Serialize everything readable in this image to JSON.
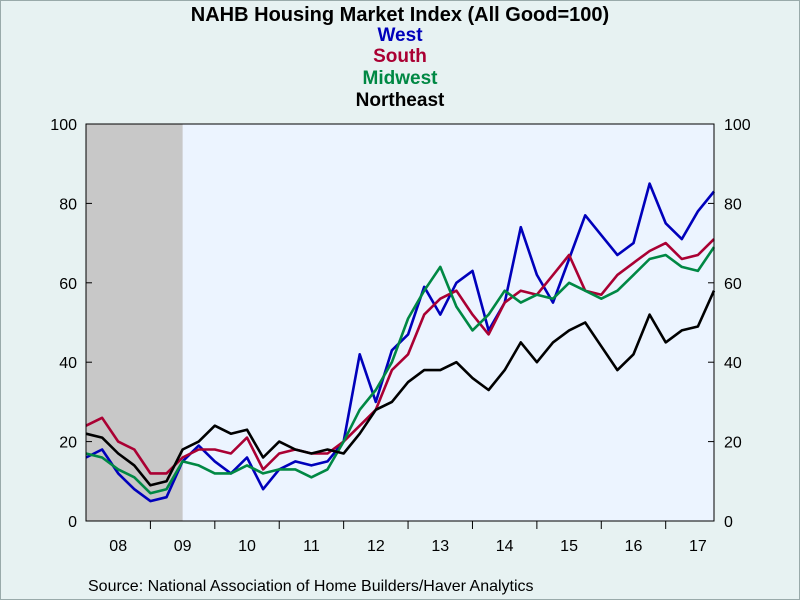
{
  "chart_data": {
    "type": "line",
    "title": "NAHB Housing Market Index (All Good=100)",
    "ylim": [
      0,
      100
    ],
    "yticks": [
      0,
      20,
      40,
      60,
      80,
      100
    ],
    "x_tick_labels": [
      "08",
      "09",
      "10",
      "11",
      "12",
      "13",
      "14",
      "15",
      "16",
      "17"
    ],
    "x_range": [
      2008.0,
      2017.75
    ],
    "recession_shading": [
      2008.0,
      2009.5
    ],
    "grid": false,
    "legend": "top-center",
    "series": [
      {
        "name": "West",
        "color": "#0000bb",
        "x": [
          2008.0,
          2008.25,
          2008.5,
          2008.75,
          2009.0,
          2009.25,
          2009.5,
          2009.75,
          2010.0,
          2010.25,
          2010.5,
          2010.75,
          2011.0,
          2011.25,
          2011.5,
          2011.75,
          2012.0,
          2012.25,
          2012.5,
          2012.75,
          2013.0,
          2013.25,
          2013.5,
          2013.75,
          2014.0,
          2014.25,
          2014.5,
          2014.75,
          2015.0,
          2015.25,
          2015.5,
          2015.75,
          2016.0,
          2016.25,
          2016.5,
          2016.75,
          2017.0,
          2017.25,
          2017.5,
          2017.75
        ],
        "values": [
          16,
          18,
          12,
          8,
          5,
          6,
          15,
          19,
          15,
          12,
          16,
          8,
          13,
          15,
          14,
          15,
          20,
          42,
          30,
          43,
          47,
          59,
          52,
          60,
          63,
          48,
          55,
          74,
          62,
          55,
          66,
          77,
          72,
          67,
          70,
          85,
          75,
          71,
          78,
          83
        ]
      },
      {
        "name": "South",
        "color": "#aa0033",
        "x": [
          2008.0,
          2008.25,
          2008.5,
          2008.75,
          2009.0,
          2009.25,
          2009.5,
          2009.75,
          2010.0,
          2010.25,
          2010.5,
          2010.75,
          2011.0,
          2011.25,
          2011.5,
          2011.75,
          2012.0,
          2012.25,
          2012.5,
          2012.75,
          2013.0,
          2013.25,
          2013.5,
          2013.75,
          2014.0,
          2014.25,
          2014.5,
          2014.75,
          2015.0,
          2015.25,
          2015.5,
          2015.75,
          2016.0,
          2016.25,
          2016.5,
          2016.75,
          2017.0,
          2017.25,
          2017.5,
          2017.75
        ],
        "values": [
          24,
          26,
          20,
          18,
          12,
          12,
          16,
          18,
          18,
          17,
          21,
          13,
          17,
          18,
          17,
          17,
          20,
          24,
          28,
          38,
          42,
          52,
          56,
          58,
          52,
          47,
          55,
          58,
          57,
          62,
          67,
          58,
          57,
          62,
          65,
          68,
          70,
          66,
          67,
          71
        ]
      },
      {
        "name": "Midwest",
        "color": "#008844",
        "x": [
          2008.0,
          2008.25,
          2008.5,
          2008.75,
          2009.0,
          2009.25,
          2009.5,
          2009.75,
          2010.0,
          2010.25,
          2010.5,
          2010.75,
          2011.0,
          2011.25,
          2011.5,
          2011.75,
          2012.0,
          2012.25,
          2012.5,
          2012.75,
          2013.0,
          2013.25,
          2013.5,
          2013.75,
          2014.0,
          2014.25,
          2014.5,
          2014.75,
          2015.0,
          2015.25,
          2015.5,
          2015.75,
          2016.0,
          2016.25,
          2016.5,
          2016.75,
          2017.0,
          2017.25,
          2017.5,
          2017.75
        ],
        "values": [
          17,
          16,
          13,
          11,
          7,
          8,
          15,
          14,
          12,
          12,
          14,
          12,
          13,
          13,
          11,
          13,
          20,
          28,
          33,
          40,
          51,
          58,
          64,
          54,
          48,
          52,
          58,
          55,
          57,
          56,
          60,
          58,
          56,
          58,
          62,
          66,
          67,
          64,
          63,
          69
        ]
      },
      {
        "name": "Northeast",
        "color": "#000000",
        "x": [
          2008.0,
          2008.25,
          2008.5,
          2008.75,
          2009.0,
          2009.25,
          2009.5,
          2009.75,
          2010.0,
          2010.25,
          2010.5,
          2010.75,
          2011.0,
          2011.25,
          2011.5,
          2011.75,
          2012.0,
          2012.25,
          2012.5,
          2012.75,
          2013.0,
          2013.25,
          2013.5,
          2013.75,
          2014.0,
          2014.25,
          2014.5,
          2014.75,
          2015.0,
          2015.25,
          2015.5,
          2015.75,
          2016.0,
          2016.25,
          2016.5,
          2016.75,
          2017.0,
          2017.25,
          2017.5,
          2017.75
        ],
        "values": [
          22,
          21,
          17,
          14,
          9,
          10,
          18,
          20,
          24,
          22,
          23,
          16,
          20,
          18,
          17,
          18,
          17,
          22,
          28,
          30,
          35,
          38,
          38,
          40,
          36,
          33,
          38,
          45,
          40,
          45,
          48,
          50,
          44,
          38,
          42,
          52,
          45,
          48,
          49,
          58
        ]
      }
    ]
  },
  "source": "Source:  National Association of Home Builders/Haver Analytics"
}
